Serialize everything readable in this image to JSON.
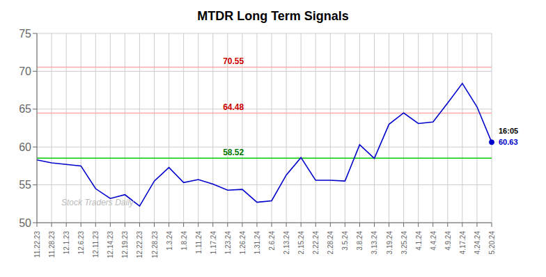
{
  "chart_data": {
    "type": "line",
    "title": "MTDR Long Term Signals",
    "categories": [
      "11.22.23",
      "11.28.23",
      "12.1.23",
      "12.6.23",
      "12.11.23",
      "12.14.23",
      "12.19.23",
      "12.22.23",
      "12.28.23",
      "1.3.24",
      "1.8.24",
      "1.11.24",
      "1.17.24",
      "1.23.24",
      "1.26.24",
      "1.31.24",
      "2.6.24",
      "2.13.24",
      "2.15.24",
      "2.22.24",
      "2.28.24",
      "3.5.24",
      "3.8.24",
      "3.13.24",
      "3.19.24",
      "3.25.24",
      "4.1.24",
      "4.4.24",
      "4.9.24",
      "4.17.24",
      "4.24.24",
      "5.20.24"
    ],
    "values": [
      58.3,
      57.9,
      57.7,
      57.5,
      54.5,
      53.2,
      53.7,
      52.2,
      55.5,
      57.3,
      55.3,
      55.7,
      55.1,
      54.3,
      54.4,
      52.7,
      52.9,
      56.3,
      58.6,
      55.6,
      55.6,
      55.5,
      60.3,
      58.5,
      63.0,
      64.5,
      63.1,
      63.3,
      65.8,
      68.4,
      65.3,
      60.63
    ],
    "color": "#0000cc",
    "ylim": [
      50,
      75
    ],
    "yticks": [
      50,
      55,
      60,
      65,
      70,
      75
    ],
    "grid": true,
    "hlines": [
      {
        "value": 58.52,
        "label": "58.52",
        "color": "#00cc00",
        "label_color": "#007700"
      },
      {
        "value": 64.48,
        "label": "64.48",
        "color": "#ffaaaa",
        "label_color": "#cc0000"
      },
      {
        "value": 70.55,
        "label": "70.55",
        "color": "#ffaaaa",
        "label_color": "#cc0000"
      }
    ],
    "last_point_labels": [
      "16:05",
      "60.63"
    ],
    "watermark": "Stock Traders Daily"
  }
}
